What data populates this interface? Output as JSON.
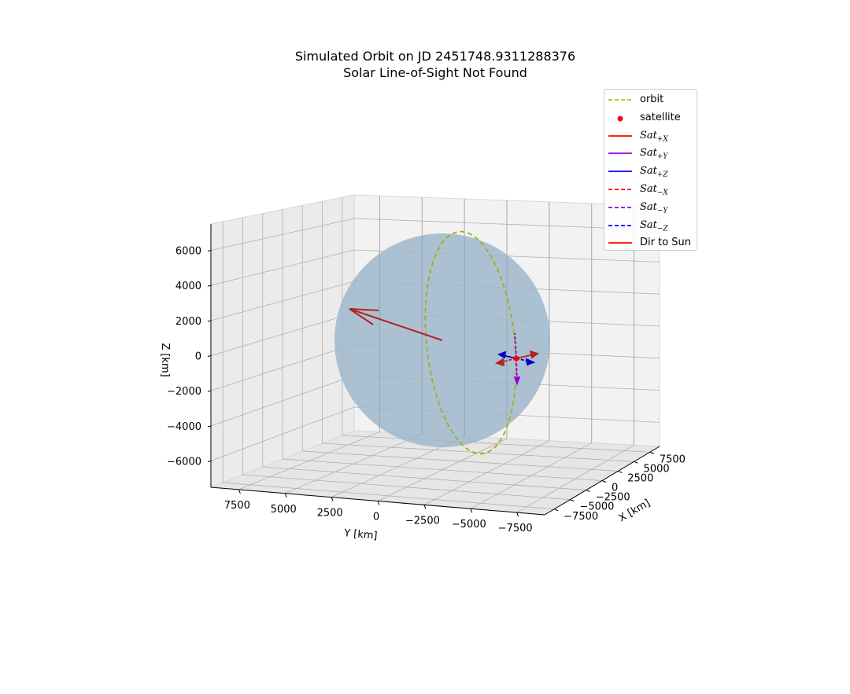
{
  "chart_data": {
    "type": "line",
    "title": "Simulated Orbit on JD 2451748.9311288376",
    "subtitle": "Solar Line-of-Sight Not Found",
    "xlabel": "X [km]",
    "ylabel": "Y [km]",
    "zlabel": "Z [km]",
    "x_ticks": [
      "−7500",
      "−5000",
      "−2500",
      "0",
      "2500",
      "5000",
      "7500"
    ],
    "y_ticks": [
      "7500",
      "5000",
      "2500",
      "0",
      "−2500",
      "−5000",
      "−7500"
    ],
    "z_ticks": [
      "6000",
      "4000",
      "2000",
      "0",
      "−2000",
      "−4000",
      "−6000"
    ],
    "xlim": [
      -9000,
      9000
    ],
    "ylim": [
      -9000,
      9000
    ],
    "zlim": [
      -7500,
      7500
    ],
    "grid": true,
    "legend_position": "top-right",
    "earth_radius_km": 6378,
    "orbit": {
      "radius_km": 6800,
      "plane": "y-z"
    },
    "series": [
      {
        "name": "orbit",
        "style": "dashed",
        "color": "#bfbf00"
      },
      {
        "name": "satellite",
        "style": "marker",
        "color": "#ff0000"
      },
      {
        "name": "Sat",
        "sub": "+X",
        "style": "solid",
        "color": "#ff0000"
      },
      {
        "name": "Sat",
        "sub": "+Y",
        "style": "solid",
        "color": "#9400d3"
      },
      {
        "name": "Sat",
        "sub": "+Z",
        "style": "solid",
        "color": "#0000ff"
      },
      {
        "name": "Sat",
        "sub": "−X",
        "style": "dashed",
        "color": "#ff0000"
      },
      {
        "name": "Sat",
        "sub": "−Y",
        "style": "dashed",
        "color": "#9400d3"
      },
      {
        "name": "Sat",
        "sub": "−Z",
        "style": "dashed",
        "color": "#0000ff"
      },
      {
        "name": "Dir to Sun",
        "style": "solid",
        "color": "#ff0000"
      }
    ]
  }
}
